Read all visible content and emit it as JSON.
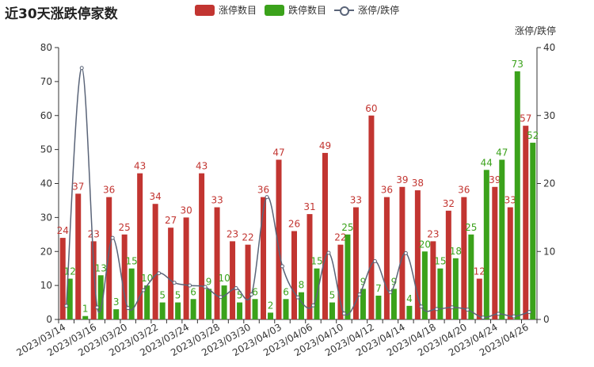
{
  "title": "近30天涨跌停家数",
  "legend": {
    "items": [
      {
        "label": "涨停数目",
        "color": "#c23531"
      },
      {
        "label": "跌停数目",
        "color": "#3ba21b"
      },
      {
        "label": "涨停/跌停",
        "color": "#5a6478"
      }
    ]
  },
  "right_axis_name": "涨停/跌停",
  "chart_data": {
    "type": "bar",
    "categories": [
      "2023/03/14",
      "2023/03/15",
      "2023/03/16",
      "2023/03/17",
      "2023/03/20",
      "2023/03/21",
      "2023/03/22",
      "2023/03/23",
      "2023/03/24",
      "2023/03/27",
      "2023/03/28",
      "2023/03/29",
      "2023/03/30",
      "2023/03/31",
      "2023/04/03",
      "2023/04/04",
      "2023/04/06",
      "2023/04/07",
      "2023/04/10",
      "2023/04/11",
      "2023/04/12",
      "2023/04/13",
      "2023/04/14",
      "2023/04/17",
      "2023/04/18",
      "2023/04/19",
      "2023/04/20",
      "2023/04/21",
      "2023/04/24",
      "2023/04/25",
      "2023/04/26"
    ],
    "xtick_labels": [
      "2023/03/14",
      "2023/03/16",
      "2023/03/20",
      "2023/03/22",
      "2023/03/24",
      "2023/03/28",
      "2023/03/30",
      "2023/04/03",
      "2023/04/06",
      "2023/04/10",
      "2023/04/12",
      "2023/04/14",
      "2023/04/18",
      "2023/04/20",
      "2023/04/24",
      "2023/04/26"
    ],
    "series": [
      {
        "name": "涨停数目",
        "type": "bar",
        "color": "#c23531",
        "values": [
          24,
          37,
          23,
          36,
          25,
          43,
          34,
          27,
          30,
          43,
          33,
          23,
          22,
          36,
          47,
          26,
          31,
          49,
          22,
          33,
          60,
          36,
          39,
          38,
          23,
          32,
          36,
          12,
          39,
          33,
          57
        ]
      },
      {
        "name": "跌停数目",
        "type": "bar",
        "color": "#3ba21b",
        "values": [
          12,
          1,
          13,
          3,
          15,
          10,
          5,
          5,
          6,
          9,
          10,
          5,
          6,
          2,
          6,
          8,
          15,
          5,
          25,
          9,
          7,
          9,
          4,
          20,
          15,
          18,
          25,
          44,
          47,
          73,
          52
        ]
      },
      {
        "name": "涨停/跌停",
        "type": "line",
        "color": "#5a6478",
        "axis": "right",
        "values": [
          2,
          37,
          1.77,
          12,
          1.67,
          4.3,
          6.8,
          5.4,
          5,
          4.78,
          3.3,
          4.6,
          3.67,
          18,
          7.83,
          3.25,
          2.07,
          9.8,
          0.88,
          3.67,
          8.57,
          4,
          9.75,
          1.9,
          1.53,
          1.78,
          1.44,
          0.27,
          0.83,
          0.45,
          1.1
        ]
      }
    ],
    "ylim": [
      0,
      80
    ],
    "yticks": [
      0,
      10,
      20,
      30,
      40,
      50,
      60,
      70,
      80
    ],
    "ylim_right": [
      0,
      40
    ],
    "yticks_right": [
      0,
      10,
      20,
      30,
      40
    ],
    "grid": false
  }
}
